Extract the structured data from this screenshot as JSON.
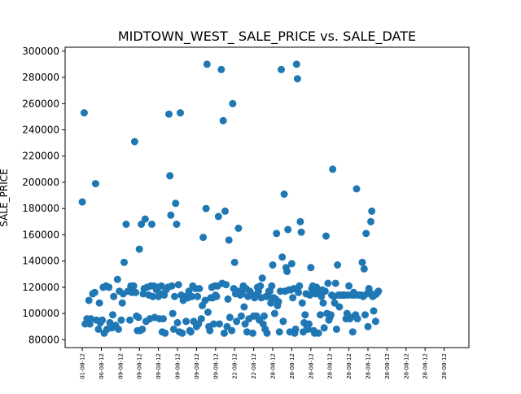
{
  "chart_data": {
    "type": "scatter",
    "title": "MIDTOWN_WEST_ SALE_PRICE vs. SALE_DATE",
    "xlabel": "",
    "ylabel": "SALE_PRICE",
    "ylim": [
      74000,
      303000
    ],
    "yticks": [
      80000,
      100000,
      120000,
      140000,
      160000,
      180000,
      200000,
      220000,
      240000,
      260000,
      280000,
      300000
    ],
    "xticks": [
      "01-08-12",
      "06-08-12",
      "09-08-12",
      "09-08-12",
      "09-08-12",
      "09-08-12",
      "09-08-12",
      "09-08-12",
      "22-08-12",
      "22-08-12",
      "28-08-12",
      "28-08-12",
      "28-08-12",
      "28-08-12",
      "28-08-12",
      "28-08-12",
      "28-08-12",
      "28-08-12",
      "28-08-12",
      "28-08-12"
    ],
    "xlim": [
      -0.9,
      20.3
    ],
    "grid": false,
    "marker_color": "#1f77b4",
    "points": [
      [
        0.0,
        185000
      ],
      [
        0.1,
        253000
      ],
      [
        0.15,
        92000
      ],
      [
        0.25,
        96000
      ],
      [
        0.35,
        110000
      ],
      [
        0.4,
        92000
      ],
      [
        0.45,
        96000
      ],
      [
        0.55,
        115000
      ],
      [
        0.65,
        116000
      ],
      [
        0.7,
        199000
      ],
      [
        0.75,
        95000
      ],
      [
        0.85,
        88000
      ],
      [
        0.9,
        108000
      ],
      [
        0.95,
        93000
      ],
      [
        1.05,
        95000
      ],
      [
        1.1,
        120000
      ],
      [
        1.15,
        85000
      ],
      [
        1.25,
        121000
      ],
      [
        1.3,
        88000
      ],
      [
        1.4,
        120000
      ],
      [
        1.45,
        93000
      ],
      [
        1.55,
        89000
      ],
      [
        1.6,
        99000
      ],
      [
        1.65,
        113000
      ],
      [
        1.75,
        91000
      ],
      [
        1.85,
        126000
      ],
      [
        1.9,
        88000
      ],
      [
        1.95,
        117000
      ],
      [
        2.05,
        95000
      ],
      [
        2.1,
        108000
      ],
      [
        2.15,
        115000
      ],
      [
        2.2,
        139000
      ],
      [
        2.3,
        168000
      ],
      [
        2.4,
        117000
      ],
      [
        2.5,
        95000
      ],
      [
        2.55,
        121000
      ],
      [
        2.6,
        116000
      ],
      [
        2.7,
        121000
      ],
      [
        2.75,
        231000
      ],
      [
        2.8,
        116000
      ],
      [
        2.85,
        98000
      ],
      [
        2.9,
        87000
      ],
      [
        2.95,
        97000
      ],
      [
        3.0,
        149000
      ],
      [
        3.05,
        87000
      ],
      [
        3.1,
        168000
      ],
      [
        3.15,
        88000
      ],
      [
        3.2,
        115000
      ],
      [
        3.25,
        119000
      ],
      [
        3.3,
        172000
      ],
      [
        3.35,
        94000
      ],
      [
        3.4,
        120000
      ],
      [
        3.5,
        114000
      ],
      [
        3.55,
        96000
      ],
      [
        3.6,
        121000
      ],
      [
        3.65,
        168000
      ],
      [
        3.7,
        113000
      ],
      [
        3.75,
        121000
      ],
      [
        3.8,
        97000
      ],
      [
        3.9,
        118000
      ],
      [
        3.95,
        120000
      ],
      [
        4.0,
        113000
      ],
      [
        4.05,
        96000
      ],
      [
        4.1,
        115000
      ],
      [
        4.15,
        121000
      ],
      [
        4.2,
        86000
      ],
      [
        4.25,
        96000
      ],
      [
        4.3,
        114000
      ],
      [
        4.35,
        85000
      ],
      [
        4.4,
        118000
      ],
      [
        4.5,
        120000
      ],
      [
        4.55,
        252000
      ],
      [
        4.6,
        205000
      ],
      [
        4.65,
        175000
      ],
      [
        4.7,
        121000
      ],
      [
        4.75,
        100000
      ],
      [
        4.8,
        88000
      ],
      [
        4.85,
        113000
      ],
      [
        4.9,
        184000
      ],
      [
        4.95,
        168000
      ],
      [
        5.0,
        93000
      ],
      [
        5.05,
        122000
      ],
      [
        5.1,
        86000
      ],
      [
        5.15,
        253000
      ],
      [
        5.2,
        114000
      ],
      [
        5.25,
        85000
      ],
      [
        5.3,
        110000
      ],
      [
        5.4,
        113000
      ],
      [
        5.45,
        94000
      ],
      [
        5.55,
        112000
      ],
      [
        5.6,
        117000
      ],
      [
        5.65,
        87000
      ],
      [
        5.7,
        86000
      ],
      [
        5.75,
        113000
      ],
      [
        5.8,
        121000
      ],
      [
        5.85,
        94000
      ],
      [
        5.95,
        119000
      ],
      [
        6.0,
        90000
      ],
      [
        6.05,
        113000
      ],
      [
        6.1,
        92000
      ],
      [
        6.15,
        119000
      ],
      [
        6.25,
        96000
      ],
      [
        6.3,
        106000
      ],
      [
        6.35,
        158000
      ],
      [
        6.45,
        110000
      ],
      [
        6.5,
        180000
      ],
      [
        6.55,
        290000
      ],
      [
        6.6,
        101000
      ],
      [
        6.65,
        90000
      ],
      [
        6.7,
        87000
      ],
      [
        6.75,
        112000
      ],
      [
        6.8,
        120000
      ],
      [
        6.85,
        112000
      ],
      [
        6.9,
        92000
      ],
      [
        6.95,
        121000
      ],
      [
        7.0,
        114000
      ],
      [
        7.05,
        113000
      ],
      [
        7.1,
        121000
      ],
      [
        7.15,
        174000
      ],
      [
        7.2,
        92000
      ],
      [
        7.3,
        286000
      ],
      [
        7.35,
        123000
      ],
      [
        7.4,
        247000
      ],
      [
        7.45,
        85000
      ],
      [
        7.5,
        178000
      ],
      [
        7.55,
        122000
      ],
      [
        7.6,
        90000
      ],
      [
        7.65,
        111000
      ],
      [
        7.7,
        156000
      ],
      [
        7.75,
        97000
      ],
      [
        7.85,
        87000
      ],
      [
        7.9,
        260000
      ],
      [
        7.95,
        119000
      ],
      [
        8.0,
        139000
      ],
      [
        8.05,
        115000
      ],
      [
        8.1,
        94000
      ],
      [
        8.15,
        117000
      ],
      [
        8.2,
        165000
      ],
      [
        8.25,
        117000
      ],
      [
        8.3,
        114000
      ],
      [
        8.35,
        98000
      ],
      [
        8.4,
        115000
      ],
      [
        8.45,
        121000
      ],
      [
        8.5,
        105000
      ],
      [
        8.55,
        92000
      ],
      [
        8.6,
        119000
      ],
      [
        8.65,
        86000
      ],
      [
        8.7,
        113000
      ],
      [
        8.75,
        96000
      ],
      [
        8.8,
        117000
      ],
      [
        8.85,
        115000
      ],
      [
        8.95,
        85000
      ],
      [
        9.0,
        98000
      ],
      [
        9.05,
        112000
      ],
      [
        9.1,
        114000
      ],
      [
        9.15,
        98000
      ],
      [
        9.2,
        120000
      ],
      [
        9.25,
        117000
      ],
      [
        9.3,
        95000
      ],
      [
        9.35,
        121000
      ],
      [
        9.4,
        112000
      ],
      [
        9.45,
        127000
      ],
      [
        9.5,
        92000
      ],
      [
        9.55,
        98000
      ],
      [
        9.6,
        88000
      ],
      [
        9.65,
        113000
      ],
      [
        9.7,
        85000
      ],
      [
        9.75,
        113000
      ],
      [
        9.8,
        117000
      ],
      [
        9.85,
        117000
      ],
      [
        9.9,
        108000
      ],
      [
        9.95,
        121000
      ],
      [
        10.0,
        137000
      ],
      [
        10.05,
        112000
      ],
      [
        10.1,
        100000
      ],
      [
        10.15,
        111000
      ],
      [
        10.2,
        161000
      ],
      [
        10.25,
        106000
      ],
      [
        10.3,
        109000
      ],
      [
        10.35,
        86000
      ],
      [
        10.4,
        117000
      ],
      [
        10.45,
        286000
      ],
      [
        10.5,
        143000
      ],
      [
        10.55,
        94000
      ],
      [
        10.6,
        191000
      ],
      [
        10.65,
        117000
      ],
      [
        10.7,
        135000
      ],
      [
        10.75,
        132000
      ],
      [
        10.8,
        164000
      ],
      [
        10.85,
        118000
      ],
      [
        10.9,
        86000
      ],
      [
        10.95,
        118000
      ],
      [
        11.0,
        138000
      ],
      [
        11.05,
        112000
      ],
      [
        11.1,
        119000
      ],
      [
        11.15,
        85000
      ],
      [
        11.2,
        88000
      ],
      [
        11.25,
        290000
      ],
      [
        11.3,
        279000
      ],
      [
        11.35,
        116000
      ],
      [
        11.4,
        121000
      ],
      [
        11.45,
        170000
      ],
      [
        11.5,
        162000
      ],
      [
        11.55,
        108000
      ],
      [
        11.6,
        86000
      ],
      [
        11.65,
        93000
      ],
      [
        11.7,
        99000
      ],
      [
        11.75,
        115000
      ],
      [
        11.8,
        90000
      ],
      [
        11.85,
        88000
      ],
      [
        11.9,
        92000
      ],
      [
        11.95,
        114000
      ],
      [
        12.0,
        135000
      ],
      [
        12.05,
        119000
      ],
      [
        12.1,
        121000
      ],
      [
        12.15,
        87000
      ],
      [
        12.2,
        85000
      ],
      [
        12.25,
        115000
      ],
      [
        12.3,
        120000
      ],
      [
        12.35,
        117000
      ],
      [
        12.4,
        85000
      ],
      [
        12.45,
        116000
      ],
      [
        12.5,
        99000
      ],
      [
        12.55,
        113000
      ],
      [
        12.6,
        118000
      ],
      [
        12.65,
        108000
      ],
      [
        12.7,
        89000
      ],
      [
        12.75,
        117000
      ],
      [
        12.8,
        159000
      ],
      [
        12.85,
        100000
      ],
      [
        12.9,
        123000
      ],
      [
        12.95,
        95000
      ],
      [
        13.0,
        97000
      ],
      [
        13.05,
        99000
      ],
      [
        13.1,
        114000
      ],
      [
        13.15,
        210000
      ],
      [
        13.2,
        113000
      ],
      [
        13.25,
        108000
      ],
      [
        13.3,
        123000
      ],
      [
        13.35,
        88000
      ],
      [
        13.4,
        137000
      ],
      [
        13.45,
        114000
      ],
      [
        13.5,
        105000
      ],
      [
        13.55,
        114000
      ],
      [
        13.6,
        114000
      ],
      [
        13.7,
        114000
      ],
      [
        13.75,
        114000
      ],
      [
        13.8,
        114000
      ],
      [
        13.85,
        96000
      ],
      [
        13.9,
        100000
      ],
      [
        13.95,
        114000
      ],
      [
        14.0,
        121000
      ],
      [
        14.05,
        96000
      ],
      [
        14.1,
        97000
      ],
      [
        14.15,
        114000
      ],
      [
        14.2,
        86000
      ],
      [
        14.25,
        116000
      ],
      [
        14.3,
        114000
      ],
      [
        14.35,
        99000
      ],
      [
        14.4,
        195000
      ],
      [
        14.45,
        96000
      ],
      [
        14.5,
        114000
      ],
      [
        14.55,
        114000
      ],
      [
        14.65,
        114000
      ],
      [
        14.7,
        139000
      ],
      [
        14.75,
        113000
      ],
      [
        14.8,
        134000
      ],
      [
        14.85,
        99000
      ],
      [
        14.9,
        161000
      ],
      [
        14.95,
        115000
      ],
      [
        15.0,
        90000
      ],
      [
        15.05,
        119000
      ],
      [
        15.1,
        116000
      ],
      [
        15.15,
        170000
      ],
      [
        15.2,
        178000
      ],
      [
        15.25,
        113000
      ],
      [
        15.3,
        102000
      ],
      [
        15.35,
        114000
      ],
      [
        15.4,
        94000
      ],
      [
        15.45,
        115000
      ],
      [
        15.5,
        116000
      ],
      [
        15.55,
        117000
      ]
    ]
  }
}
